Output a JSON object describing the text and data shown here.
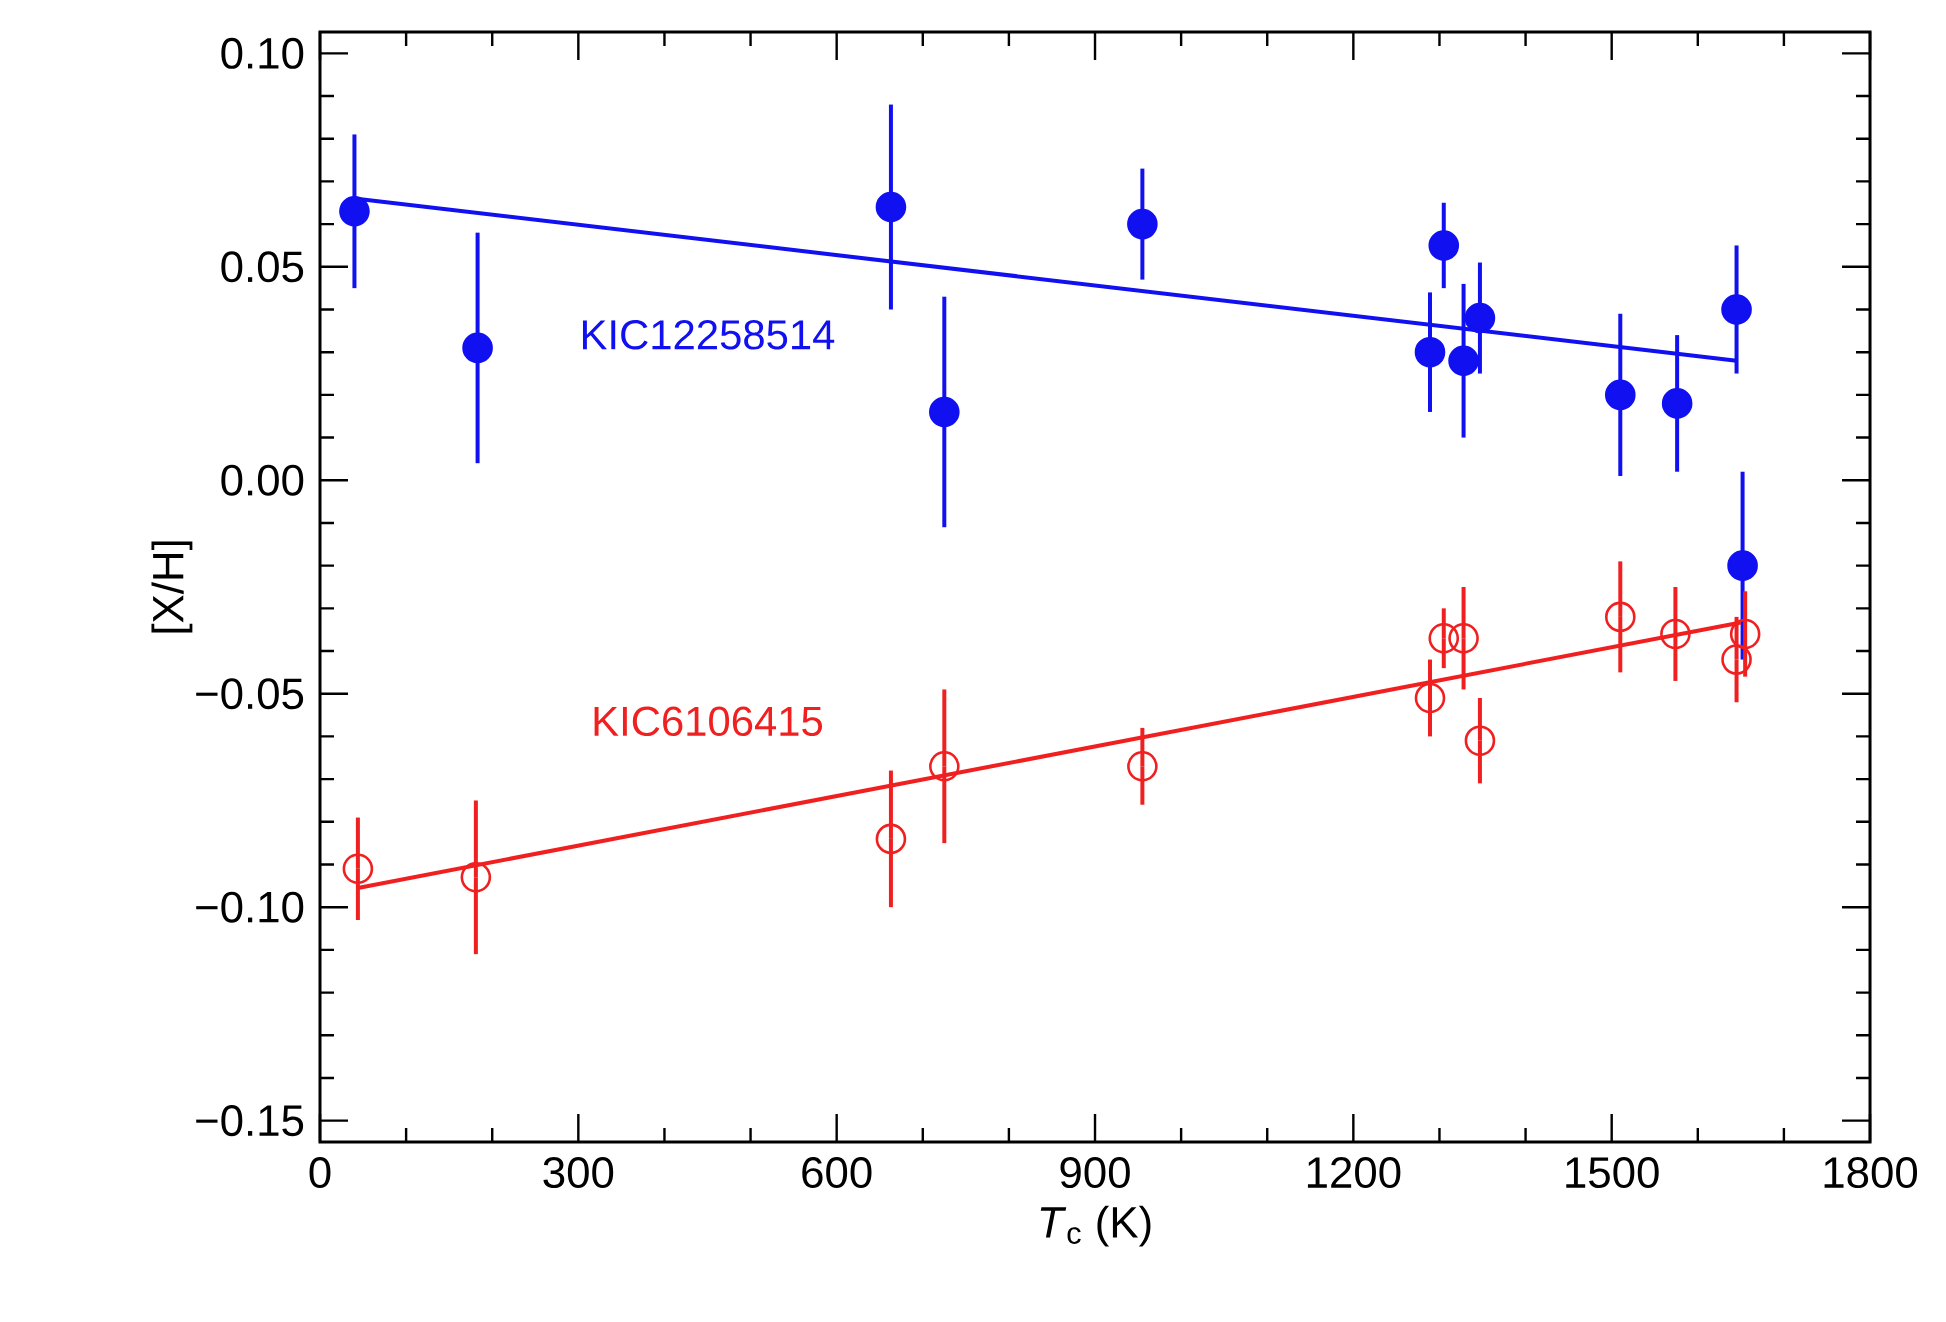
{
  "chart_data": {
    "type": "scatter",
    "xlabel": "*T*$_{c}$ (K)",
    "ylabel": "[X/H]",
    "xlim": [
      0,
      1800
    ],
    "xticks": [
      0,
      300,
      600,
      900,
      1200,
      1500,
      1800
    ],
    "ylim": [
      -0.155,
      0.105
    ],
    "yticks": [
      {
        "value": -0.15,
        "label": "−0.15"
      },
      {
        "value": -0.1,
        "label": "−0.10"
      },
      {
        "value": -0.05,
        "label": "−0.05"
      },
      {
        "value": 0,
        "label": "0.00"
      },
      {
        "value": 0.05,
        "label": "0.05"
      },
      {
        "value": 0.1,
        "label": "0.10"
      }
    ],
    "series": [
      {
        "name": "KIC12258514",
        "color": "#1010f0",
        "marker": "circle",
        "x": [
          40,
          183,
          663,
          725,
          955,
          1289,
          1305,
          1328,
          1347,
          1510,
          1576,
          1645,
          1652
        ],
        "values": [
          0.063,
          0.031,
          0.064,
          0.016,
          0.06,
          0.03,
          0.055,
          0.028,
          0.038,
          0.02,
          0.018,
          0.04,
          -0.02
        ],
        "errors": [
          0.018,
          0.027,
          0.024,
          0.027,
          0.013,
          0.014,
          0.01,
          0.018,
          0.013,
          0.019,
          0.016,
          0.015,
          0.022
        ]
      },
      {
        "type": "line",
        "color": "#1010f0",
        "x": [
          40,
          1645
        ],
        "values": [
          0.066,
          0.028
        ]
      },
      {
        "name": "KIC6106415",
        "color": "#f02020",
        "marker": "open circle",
        "x": [
          44,
          181,
          663,
          725,
          955,
          1289,
          1305,
          1328,
          1347,
          1510,
          1574,
          1645,
          1655
        ],
        "values": [
          -0.091,
          -0.093,
          -0.084,
          -0.067,
          -0.067,
          -0.051,
          -0.037,
          -0.037,
          -0.061,
          -0.032,
          -0.036,
          -0.042,
          -0.036
        ],
        "errors": [
          0.012,
          0.018,
          0.016,
          0.018,
          0.009,
          0.009,
          0.007,
          0.012,
          0.01,
          0.013,
          0.011,
          0.01,
          0.01
        ]
      },
      {
        "type": "line",
        "color": "#f02020",
        "x": [
          44,
          1650
        ],
        "values": [
          -0.0955,
          -0.0333
        ]
      }
    ]
  }
}
